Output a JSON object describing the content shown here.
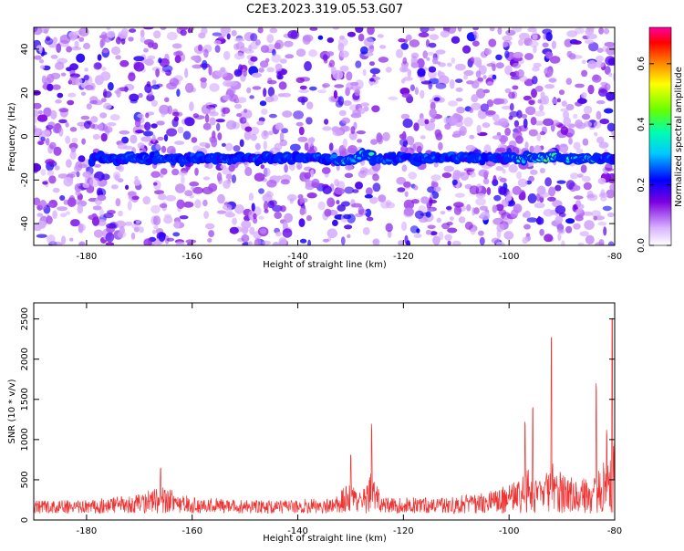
{
  "title": "C2E3.2023.319.05.53.G07",
  "chart_data": [
    {
      "type": "heatmap",
      "xlabel": "Height of straight line (km)",
      "ylabel": "Frequency (Hz)",
      "xlim": [
        -190,
        -80
      ],
      "ylim": [
        -50,
        50
      ],
      "xticks": [
        -180,
        -160,
        -140,
        -120,
        -100,
        -80
      ],
      "yticks": [
        -40,
        -20,
        0,
        20,
        40
      ],
      "colorbar": {
        "label": "Normalized spectral amplitude",
        "range": [
          0.0,
          0.72
        ],
        "ticks": [
          0.0,
          0.2,
          0.4,
          0.6
        ],
        "tick_labels": [
          "0.0",
          "0.2",
          "0.4",
          "0.6"
        ]
      },
      "ridge": {
        "frequency_hz": -10,
        "x_start": -179,
        "x_end": -80,
        "peak_segments": [
          {
            "x": [
              -170,
              -162
            ],
            "level": 0.35
          },
          {
            "x": [
              -133,
              -126
            ],
            "level": 0.55
          },
          {
            "x": [
              -100,
              -84
            ],
            "level": 0.6
          }
        ]
      },
      "gaps": [
        {
          "x": [
            -137,
            -135
          ]
        },
        {
          "x": [
            -125,
            -121
          ]
        }
      ]
    },
    {
      "type": "line",
      "xlabel": "Height of straight line (km)",
      "ylabel": "SNR (10 * v/v)",
      "xlim": [
        -190,
        -80
      ],
      "ylim": [
        0,
        2700
      ],
      "xticks": [
        -180,
        -160,
        -140,
        -120,
        -100,
        -80
      ],
      "yticks": [
        0,
        500,
        1000,
        1500,
        2000,
        2500
      ],
      "color": "#ee3333",
      "envelope": [
        {
          "x": -190,
          "y": 220
        },
        {
          "x": -180,
          "y": 230
        },
        {
          "x": -170,
          "y": 300
        },
        {
          "x": -166,
          "y": 420
        },
        {
          "x": -160,
          "y": 260
        },
        {
          "x": -150,
          "y": 230
        },
        {
          "x": -140,
          "y": 240
        },
        {
          "x": -133,
          "y": 260
        },
        {
          "x": -130,
          "y": 480
        },
        {
          "x": -128,
          "y": 300
        },
        {
          "x": -126,
          "y": 620
        },
        {
          "x": -124,
          "y": 260
        },
        {
          "x": -110,
          "y": 280
        },
        {
          "x": -104,
          "y": 330
        },
        {
          "x": -100,
          "y": 420
        },
        {
          "x": -96,
          "y": 650
        },
        {
          "x": -94,
          "y": 450
        },
        {
          "x": -92,
          "y": 700
        },
        {
          "x": -88,
          "y": 500
        },
        {
          "x": -84,
          "y": 520
        },
        {
          "x": -81,
          "y": 900
        },
        {
          "x": -80,
          "y": 1000
        }
      ],
      "spikes": [
        {
          "x": -166.0,
          "y": 700
        },
        {
          "x": -130.0,
          "y": 840
        },
        {
          "x": -126.0,
          "y": 1200
        },
        {
          "x": -97.0,
          "y": 1250
        },
        {
          "x": -95.5,
          "y": 1480
        },
        {
          "x": -92.0,
          "y": 2280
        },
        {
          "x": -83.5,
          "y": 1700
        },
        {
          "x": -81.5,
          "y": 1150
        },
        {
          "x": -80.5,
          "y": 2700
        }
      ]
    }
  ]
}
